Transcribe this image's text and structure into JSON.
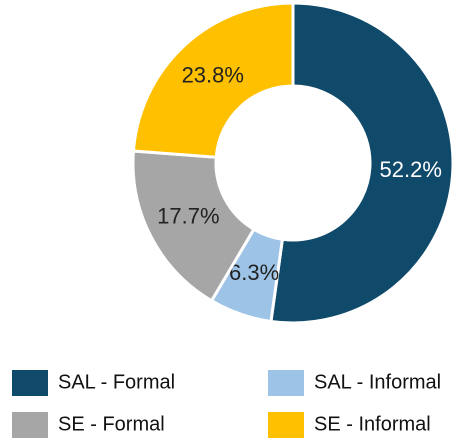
{
  "chart_data": {
    "type": "donut",
    "categories": [
      "SAL - Formal",
      "SAL - Informal",
      "SE - Formal",
      "SE - Informal"
    ],
    "values": [
      52.2,
      6.3,
      17.7,
      23.8
    ],
    "value_labels": [
      "52.2%",
      "6.3%",
      "17.7%",
      "23.8%"
    ],
    "colors": [
      "#0f4a6b",
      "#9dc3e6",
      "#a6a6a6",
      "#ffc000"
    ],
    "label_colors": [
      "#ffffff",
      "#222222",
      "#222222",
      "#222222"
    ],
    "legend": "bottom"
  }
}
